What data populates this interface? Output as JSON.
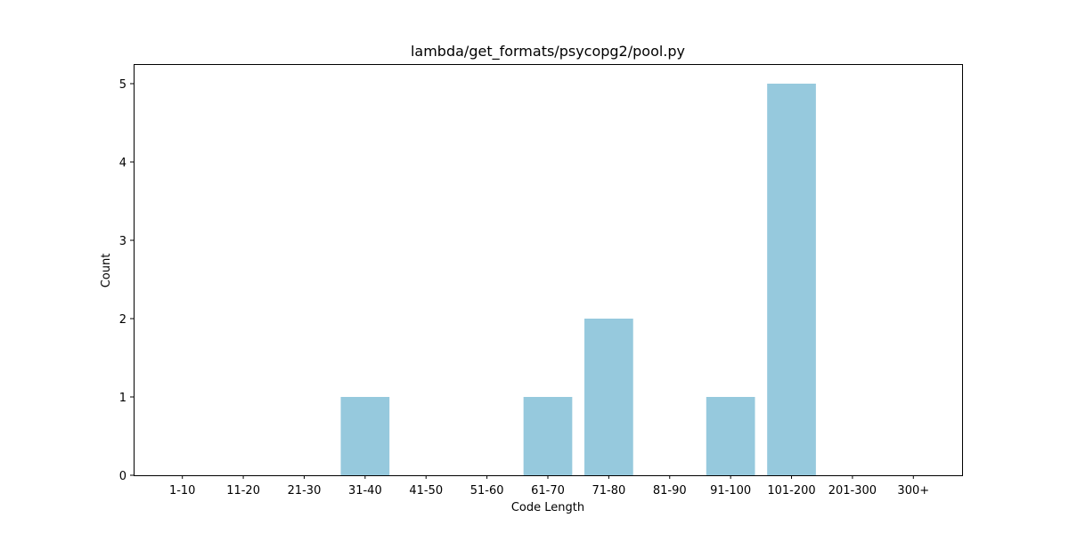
{
  "chart_data": {
    "type": "bar",
    "title": "lambda/get_formats/psycopg2/pool.py",
    "xlabel": "Code Length",
    "ylabel": "Count",
    "categories": [
      "1-10",
      "11-20",
      "21-30",
      "31-40",
      "41-50",
      "51-60",
      "61-70",
      "71-80",
      "81-90",
      "91-100",
      "101-200",
      "201-300",
      "300+"
    ],
    "values": [
      0,
      0,
      0,
      1,
      0,
      0,
      1,
      2,
      0,
      1,
      5,
      0,
      0
    ],
    "ylim": [
      0,
      5.25
    ],
    "yticks": [
      0,
      1,
      2,
      3,
      4,
      5
    ],
    "bar_color": "#96c9dd",
    "grid": false,
    "legend": "none"
  }
}
